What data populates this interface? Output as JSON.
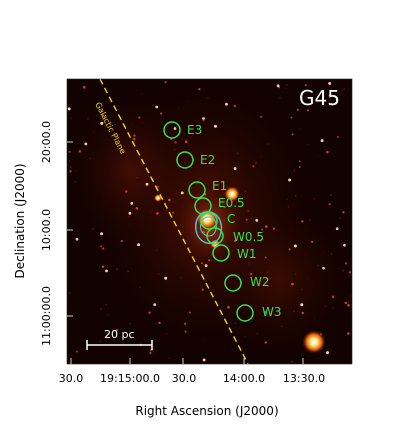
{
  "figure": {
    "panel_title": "G45",
    "x_axis_label": "Right Ascension (J2000)",
    "y_axis_label": "Declination (J2000)",
    "x_ticks": [
      "30.0",
      "19:15:00.0",
      "30.0",
      "14:00.0",
      "13:30.0"
    ],
    "y_ticks": [
      "20:00.0",
      "10:00.0",
      "11:00:00.0"
    ],
    "plane_label": "Galactic Plane",
    "scale_bar_label": "20 pc",
    "regions": [
      {
        "id": "E3",
        "label": "E3"
      },
      {
        "id": "E2",
        "label": "E2"
      },
      {
        "id": "E1",
        "label": "E1"
      },
      {
        "id": "E0.5",
        "label": "E0.5"
      },
      {
        "id": "C",
        "label": "C"
      },
      {
        "id": "W0.5",
        "label": "W0.5"
      },
      {
        "id": "W1",
        "label": "W1"
      },
      {
        "id": "W2",
        "label": "W2"
      },
      {
        "id": "W3",
        "label": "W3"
      }
    ]
  },
  "colors": {
    "background": "#000000",
    "region_circle": "#39e04a",
    "contour": "#4cc6d9",
    "galactic_plane": "#f2d21a",
    "panel_title": "#ffffff"
  }
}
